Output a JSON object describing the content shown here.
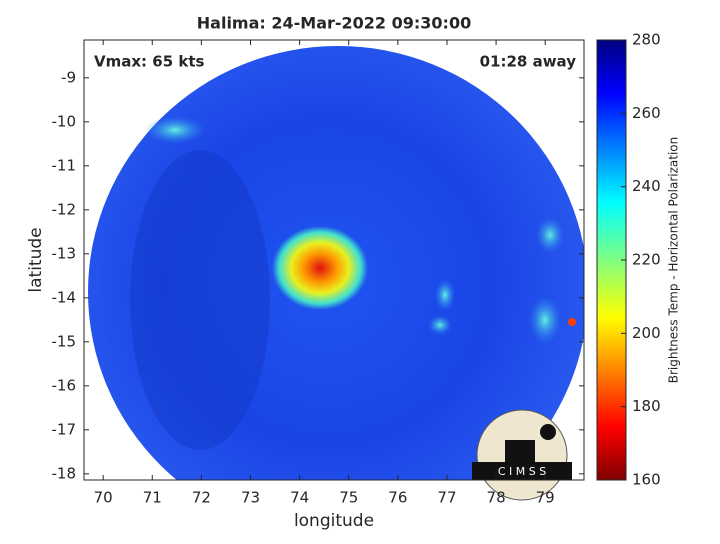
{
  "chart_data": {
    "type": "image",
    "title": "Halima: 24-Mar-2022 09:30:00",
    "annotations": [
      "Vmax: 65 kts",
      "01:28 away"
    ],
    "xlabel": "longitude",
    "ylabel": "latitude",
    "xlim": [
      69.61,
      79.79
    ],
    "xticks": [
      70,
      71,
      72,
      73,
      74,
      75,
      76,
      77,
      78,
      79
    ],
    "ylim": [
      -18.14,
      -8.14
    ],
    "yticks": [
      -9,
      -10,
      -11,
      -12,
      -13,
      -14,
      -15,
      -16,
      -17,
      -18
    ],
    "colorbar": {
      "label": "Brightness Temp - Horizontal Polarization",
      "lim": [
        160,
        280
      ],
      "ticks": [
        160,
        180,
        200,
        220,
        240,
        260,
        280
      ]
    },
    "logo": "C I M S S"
  }
}
